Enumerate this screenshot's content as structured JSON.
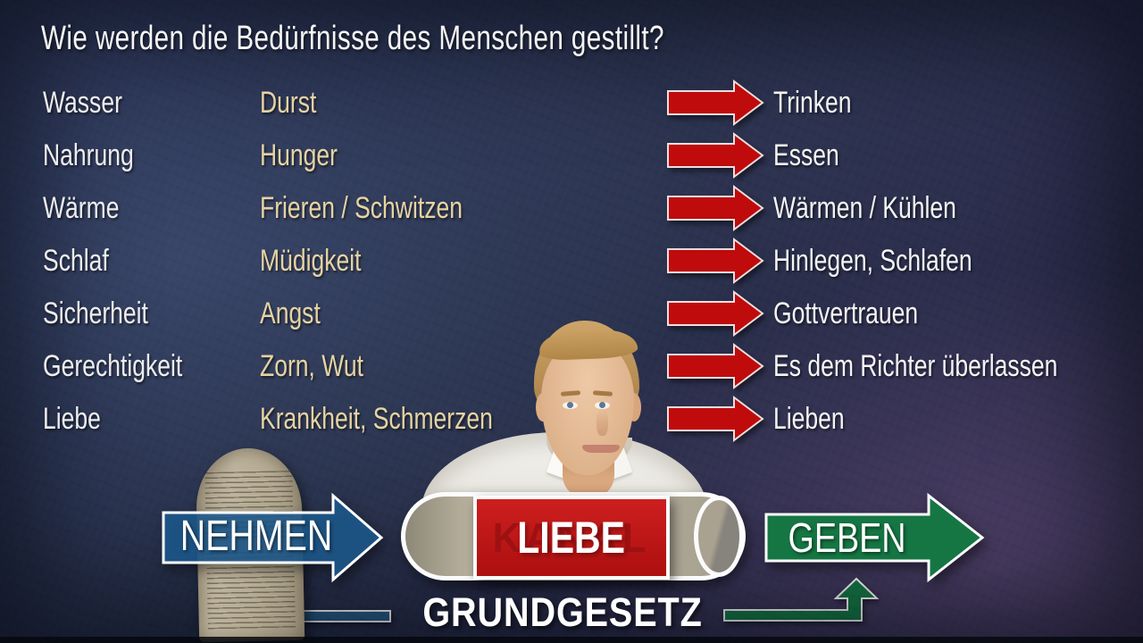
{
  "title": "Wie werden die Bedürfnisse des Menschen gestillt?",
  "needs_table": {
    "rows": [
      {
        "need": "Wasser",
        "signal": "Durst",
        "fulfillment": "Trinken"
      },
      {
        "need": "Nahrung",
        "signal": "Hunger",
        "fulfillment": "Essen"
      },
      {
        "need": "Wärme",
        "signal": "Frieren / Schwitzen",
        "fulfillment": "Wärmen / Kühlen"
      },
      {
        "need": "Schlaf",
        "signal": "Müdigkeit",
        "fulfillment": "Hinlegen, Schlafen"
      },
      {
        "need": "Sicherheit",
        "signal": "Angst",
        "fulfillment": "Gottvertrauen"
      },
      {
        "need": "Gerechtigkeit",
        "signal": "Zorn, Wut",
        "fulfillment": "Es dem Richter überlassen"
      },
      {
        "need": "Liebe",
        "signal": "Krankheit, Schmerzen",
        "fulfillment": "Lieben"
      }
    ]
  },
  "flow": {
    "take_label": "NEHMEN",
    "give_label": "GEBEN",
    "channel_hidden_word": "KANAL",
    "channel_word": "LIEBE",
    "base_law_label": "GRUNDGESETZ"
  },
  "colors": {
    "background": "#273050",
    "arrow_red": "#bf0b0b",
    "take_blue": "#1d5c91",
    "give_green": "#157a45",
    "channel_red": "#c21717",
    "signal_text_gold": "#e6d3a3",
    "main_text": "#f2f2f2"
  }
}
